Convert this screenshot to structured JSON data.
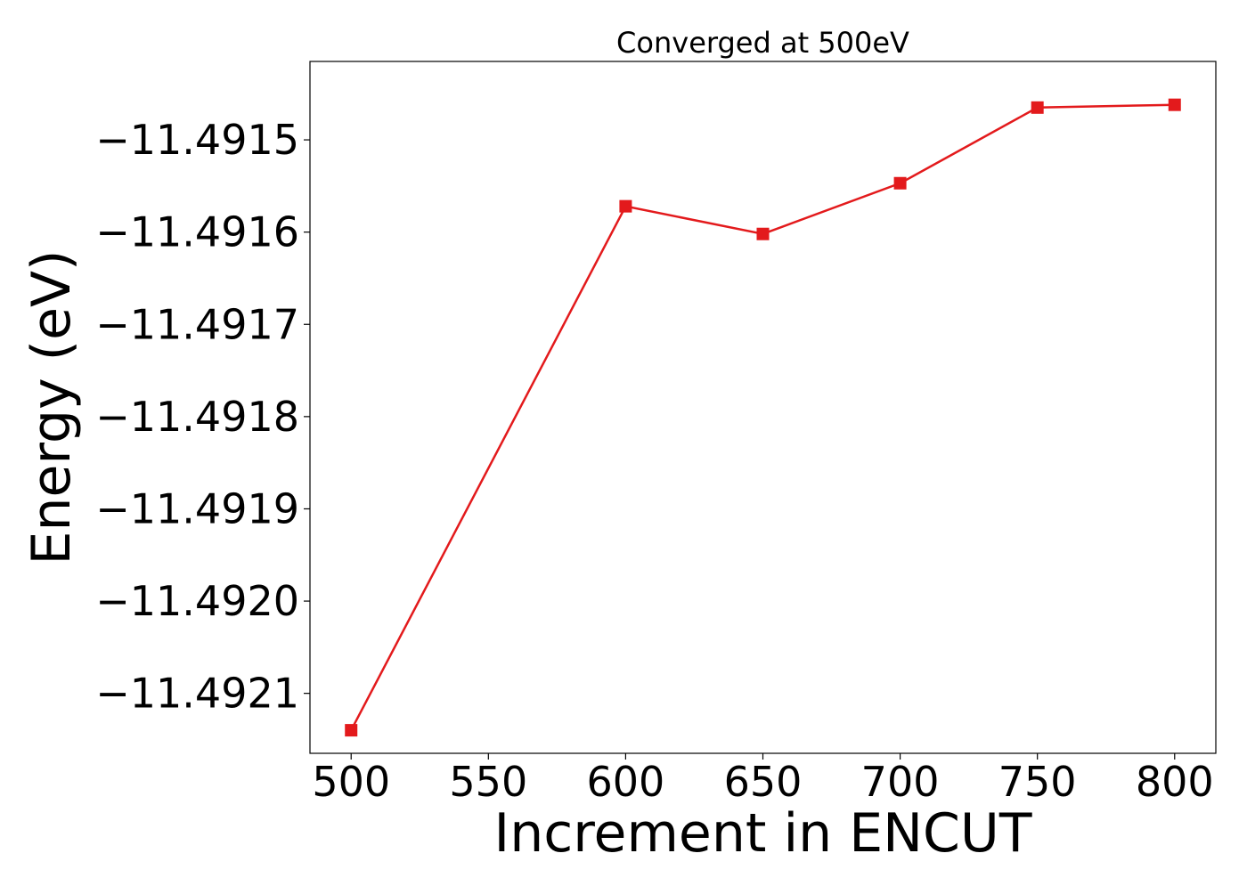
{
  "chart_data": {
    "type": "line",
    "title": "Converged at 500eV",
    "xlabel": "Increment in ENCUT",
    "ylabel": "Energy (eV)",
    "x": [
      500,
      600,
      650,
      700,
      750,
      800
    ],
    "series": [
      {
        "values": [
          -11.49214,
          -11.491572,
          -11.491602,
          -11.491547,
          -11.491465,
          -11.491462
        ],
        "color": "#e31a1c",
        "marker": "square"
      }
    ],
    "xlim": [
      485,
      815
    ],
    "ylim": [
      -11.491415,
      -11.492165
    ],
    "xticks": [
      500,
      550,
      600,
      650,
      700,
      750,
      800
    ],
    "xtick_labels": [
      "500",
      "550",
      "600",
      "650",
      "700",
      "750",
      "800"
    ],
    "yticks": [
      -11.4915,
      -11.4916,
      -11.4917,
      -11.4918,
      -11.4919,
      -11.492,
      -11.4921
    ],
    "ytick_labels": [
      "−11.4915",
      "−11.4916",
      "−11.4917",
      "−11.4918",
      "−11.4919",
      "−11.4920",
      "−11.4921"
    ],
    "grid": false,
    "legend": "none"
  }
}
